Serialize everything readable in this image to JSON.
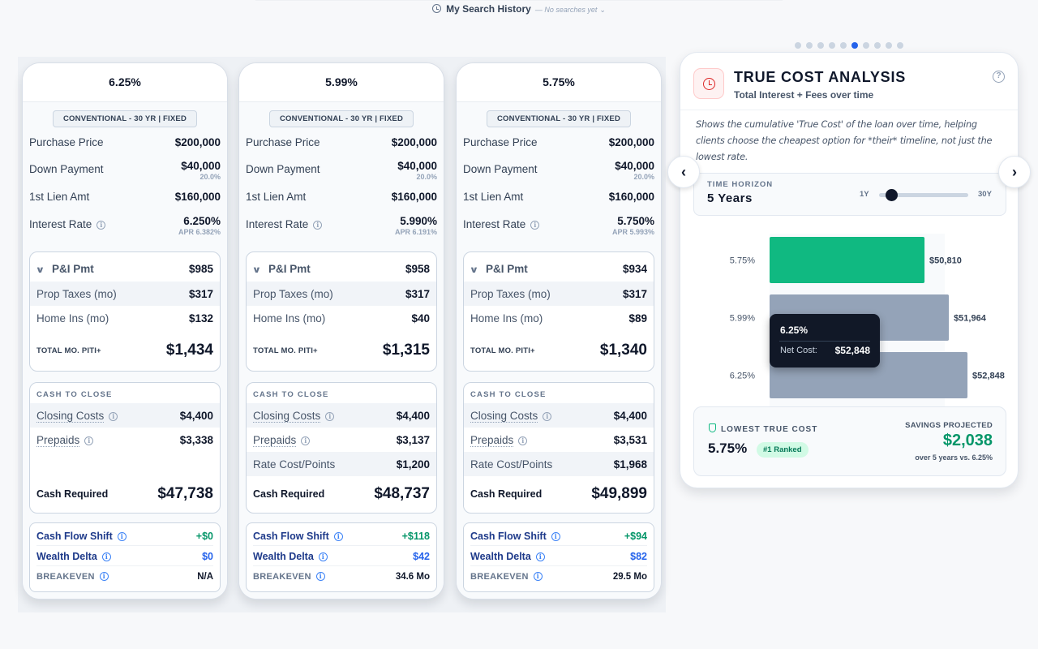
{
  "history": {
    "label": "My Search History",
    "status": "— No searches yet"
  },
  "scenarios": [
    {
      "rate_header": "6.25%",
      "loan_type": "CONVENTIONAL - 30 YR | FIXED",
      "purchase_price_label": "Purchase Price",
      "purchase_price": "$200,000",
      "down_payment_label": "Down Payment",
      "down_payment": "$40,000",
      "down_pct": "20.0%",
      "lien_label": "1st Lien Amt",
      "lien": "$160,000",
      "rate_label": "Interest Rate",
      "rate": "6.250%",
      "apr": "APR 6.382%",
      "pi_label": "P&I Pmt",
      "pi": "$985",
      "taxes_label": "Prop Taxes (mo)",
      "taxes": "$317",
      "ins_label": "Home Ins (mo)",
      "ins": "$132",
      "total_label": "TOTAL MO. PITI+",
      "total": "$1,434",
      "ctc_title": "CASH TO CLOSE",
      "closing_label": "Closing Costs",
      "closing": "$4,400",
      "prepaids_label": "Prepaids",
      "prepaids": "$3,338",
      "points_label": "",
      "points": "",
      "cash_req_label": "Cash Required",
      "cash_req": "$47,738",
      "cfs_label": "Cash Flow Shift",
      "cfs": "+$0",
      "wd_label": "Wealth Delta",
      "wd": "$0",
      "be_label": "BREAKEVEN",
      "be": "N/A"
    },
    {
      "rate_header": "5.99%",
      "loan_type": "CONVENTIONAL - 30 YR | FIXED",
      "purchase_price_label": "Purchase Price",
      "purchase_price": "$200,000",
      "down_payment_label": "Down Payment",
      "down_payment": "$40,000",
      "down_pct": "20.0%",
      "lien_label": "1st Lien Amt",
      "lien": "$160,000",
      "rate_label": "Interest Rate",
      "rate": "5.990%",
      "apr": "APR 6.191%",
      "pi_label": "P&I Pmt",
      "pi": "$958",
      "taxes_label": "Prop Taxes (mo)",
      "taxes": "$317",
      "ins_label": "Home Ins (mo)",
      "ins": "$40",
      "total_label": "TOTAL MO. PITI+",
      "total": "$1,315",
      "ctc_title": "CASH TO CLOSE",
      "closing_label": "Closing Costs",
      "closing": "$4,400",
      "prepaids_label": "Prepaids",
      "prepaids": "$3,137",
      "points_label": "Rate Cost/Points",
      "points": "$1,200",
      "cash_req_label": "Cash Required",
      "cash_req": "$48,737",
      "cfs_label": "Cash Flow Shift",
      "cfs": "+$118",
      "wd_label": "Wealth Delta",
      "wd": "$42",
      "be_label": "BREAKEVEN",
      "be": "34.6 Mo"
    },
    {
      "rate_header": "5.75%",
      "loan_type": "CONVENTIONAL - 30 YR | FIXED",
      "purchase_price_label": "Purchase Price",
      "purchase_price": "$200,000",
      "down_payment_label": "Down Payment",
      "down_payment": "$40,000",
      "down_pct": "20.0%",
      "lien_label": "1st Lien Amt",
      "lien": "$160,000",
      "rate_label": "Interest Rate",
      "rate": "5.750%",
      "apr": "APR 5.993%",
      "pi_label": "P&I Pmt",
      "pi": "$934",
      "taxes_label": "Prop Taxes (mo)",
      "taxes": "$317",
      "ins_label": "Home Ins (mo)",
      "ins": "$89",
      "total_label": "TOTAL MO. PITI+",
      "total": "$1,340",
      "ctc_title": "CASH TO CLOSE",
      "closing_label": "Closing Costs",
      "closing": "$4,400",
      "prepaids_label": "Prepaids",
      "prepaids": "$3,531",
      "points_label": "Rate Cost/Points",
      "points": "$1,968",
      "cash_req_label": "Cash Required",
      "cash_req": "$49,899",
      "cfs_label": "Cash Flow Shift",
      "cfs": "+$94",
      "wd_label": "Wealth Delta",
      "wd": "$82",
      "be_label": "BREAKEVEN",
      "be": "29.5 Mo"
    }
  ],
  "carousel": {
    "count": 10,
    "active_index": 6
  },
  "panel": {
    "title": "TRUE COST ANALYSIS",
    "subtitle": "Total Interest + Fees over time",
    "description": "Shows the cumulative 'True Cost' of the loan over time, helping clients choose the cheapest option for *their* timeline, not just the lowest rate.",
    "horizon_label": "TIME HORIZON",
    "horizon_value": "5 Years",
    "horizon_min": "1Y",
    "horizon_max": "30Y",
    "horizon_position": 0.14,
    "tooltip": {
      "title": "6.25%",
      "label": "Net Cost:",
      "value": "$52,848"
    },
    "summary": {
      "label": "LOWEST TRUE COST",
      "rate": "5.75%",
      "rank": "#1 Ranked",
      "projected_label": "SAVINGS PROJECTED",
      "amount": "$2,038",
      "note": "over 5 years vs. 6.25%"
    }
  },
  "colors": {
    "best": "#10b981",
    "other": "#94a3b8",
    "accent": "#2563eb"
  },
  "chart_data": {
    "type": "bar",
    "orientation": "horizontal",
    "title": "",
    "categories": [
      "5.75%",
      "5.99%",
      "6.25%"
    ],
    "values": [
      50810,
      51964,
      52848
    ],
    "value_labels": [
      "$50,810",
      "$51,964",
      "$52,848"
    ],
    "highlight_category": "5.75%",
    "xlim": [
      0,
      55000
    ],
    "grid": false
  }
}
